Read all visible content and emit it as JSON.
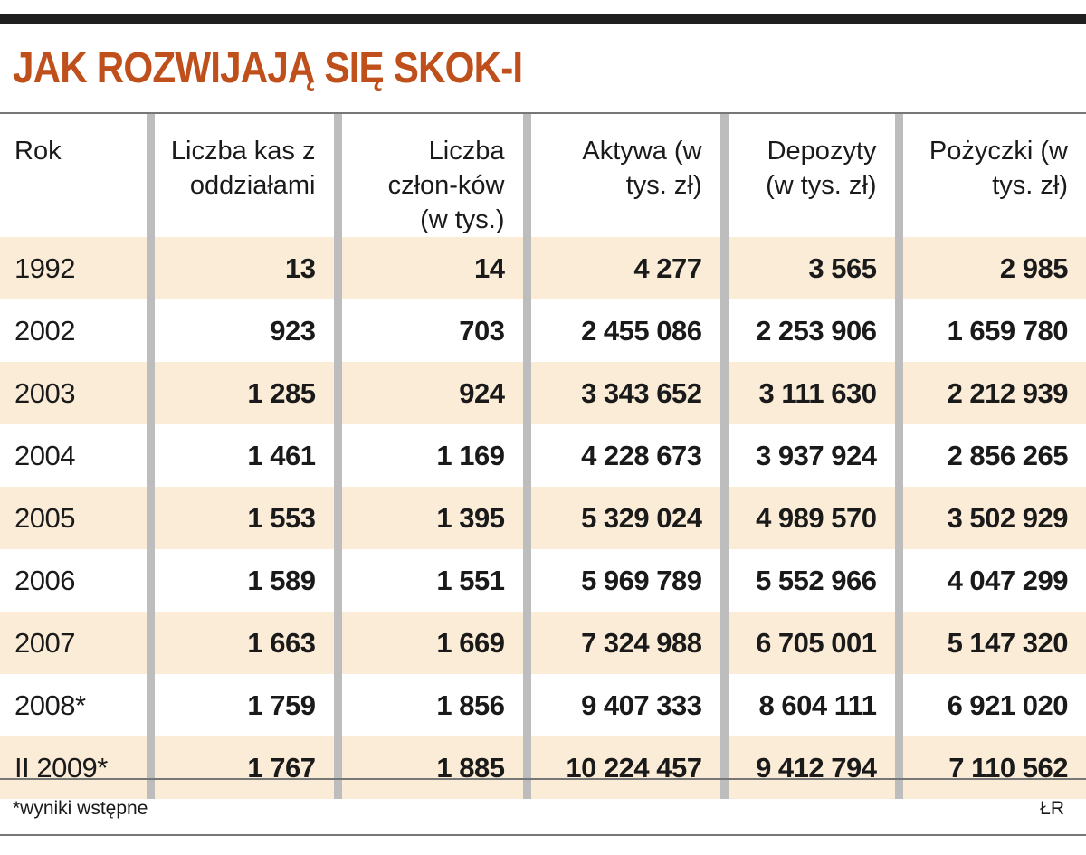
{
  "title": "JAK ROZWIJAJĄ SIĘ SKOK-I",
  "chart_data": {
    "type": "table",
    "title": "JAK ROZWIJAJĄ SIĘ SKOK-I",
    "columns": [
      "Rok",
      "Liczba kas z oddziałami",
      "Liczba człon-ków (w tys.)",
      "Aktywa (w tys. zł)",
      "Depozyty (w tys. zł)",
      "Pożyczki (w tys. zł)"
    ],
    "rows": [
      [
        "1992",
        "13",
        "14",
        "4 277",
        "3 565",
        "2 985"
      ],
      [
        "2002",
        "923",
        "703",
        "2 455 086",
        "2 253 906",
        "1 659 780"
      ],
      [
        "2003",
        "1 285",
        "924",
        "3 343 652",
        "3 111 630",
        "2 212 939"
      ],
      [
        "2004",
        "1 461",
        "1 169",
        "4 228 673",
        "3 937 924",
        "2 856 265"
      ],
      [
        "2005",
        "1 553",
        "1 395",
        "5 329 024",
        "4 989 570",
        "3 502 929"
      ],
      [
        "2006",
        "1 589",
        "1 551",
        "5 969 789",
        "5 552 966",
        "4 047 299"
      ],
      [
        "2007",
        "1 663",
        "1 669",
        "7 324 988",
        "6 705 001",
        "5 147 320"
      ],
      [
        "2008*",
        "1 759",
        "1 856",
        "9 407 333",
        "8 604 111",
        "6 921 020"
      ],
      [
        "II 2009*",
        "1 767",
        "1 885",
        "10 224 457",
        "9 412 794",
        "7 110 562"
      ]
    ],
    "footnote": "*wyniki wstępne",
    "credit": "ŁR"
  },
  "colors": {
    "title": "#c0501b",
    "row_shade": "#fbecd8",
    "column_divider": "#bdbdbd",
    "rule": "#1f1f1f"
  }
}
